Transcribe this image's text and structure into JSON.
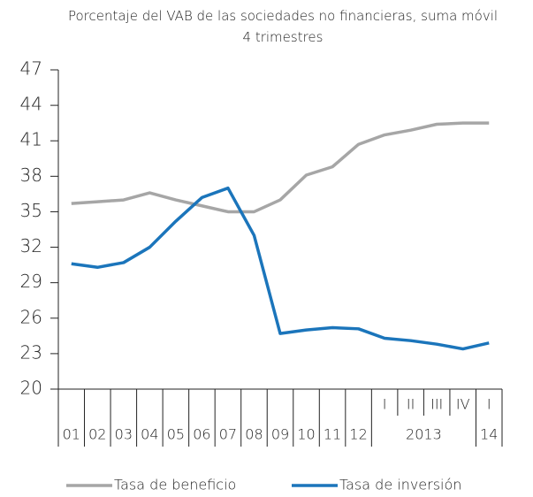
{
  "chart_data": {
    "type": "line",
    "title": "Porcentaje del VAB de las sociedades no financieras, suma móvil 4 trimestres",
    "categories": [
      "01",
      "02",
      "03",
      "04",
      "05",
      "06",
      "07",
      "08",
      "09",
      "10",
      "11",
      "12",
      "I",
      "II",
      "III",
      "IV",
      "I"
    ],
    "category_years": [
      null,
      null,
      null,
      null,
      null,
      null,
      null,
      null,
      null,
      null,
      null,
      null,
      "2013",
      "2013",
      "2013",
      "2013",
      "14"
    ],
    "series": [
      {
        "name": "Tasa de beneficio",
        "color": "#a6a6a6",
        "values": [
          35.7,
          35.85,
          36.0,
          36.6,
          36.0,
          35.5,
          35.0,
          35.0,
          36.0,
          38.1,
          38.8,
          40.7,
          41.5,
          41.9,
          42.4,
          42.5,
          42.5
        ]
      },
      {
        "name": "Tasa de inversión",
        "color": "#1b75bb",
        "values": [
          30.6,
          30.3,
          30.7,
          32.0,
          34.2,
          36.2,
          37.0,
          33.0,
          24.7,
          25.0,
          25.2,
          25.1,
          24.3,
          24.1,
          23.8,
          23.4,
          23.9
        ]
      }
    ],
    "ylim": [
      20,
      47
    ],
    "yticks": [
      20,
      23,
      26,
      29,
      32,
      35,
      38,
      41,
      44,
      47
    ],
    "legend": "bottom"
  }
}
